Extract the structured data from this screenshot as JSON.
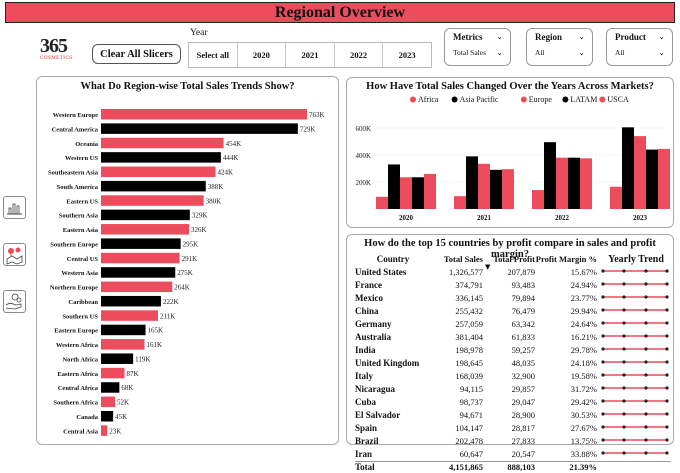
{
  "header": {
    "title": "Regional Overview"
  },
  "logo": {
    "number": "365",
    "subtitle": "COSMETICS"
  },
  "clear_button": "Clear All Slicers",
  "year_slicer": {
    "label": "Year",
    "options": [
      "Select all",
      "2020",
      "2021",
      "2022",
      "2023"
    ]
  },
  "dropdowns": [
    {
      "label": "Metrics",
      "value": "Total Sales"
    },
    {
      "label": "Region",
      "value": "All"
    },
    {
      "label": "Product",
      "value": "All"
    }
  ],
  "side_icons": [
    "bar-chart-icon",
    "map-pin-icon",
    "hand-coins-icon"
  ],
  "colors": {
    "accent": "#ed4c5c",
    "dark": "#000000",
    "title_bar": "#ed4c5c"
  },
  "chart_data": [
    {
      "type": "bar",
      "orientation": "horizontal",
      "title": "What Do Region-wise Total Sales Trends Show?",
      "categories": [
        "Western Europe",
        "Central America",
        "Oceania",
        "Western US",
        "Southeastern Asia",
        "South America",
        "Eastern US",
        "Southern Asia",
        "Eastern Asia",
        "Southern Europe",
        "Central US",
        "Western Asia",
        "Northern Europe",
        "Caribbean",
        "Southern US",
        "Eastern Europe",
        "Western Africa",
        "North Africa",
        "Eastern Africa",
        "Central Africa",
        "Southern Africa",
        "Canada",
        "Central Asia"
      ],
      "values": [
        763,
        729,
        454,
        444,
        424,
        388,
        380,
        329,
        326,
        295,
        291,
        275,
        264,
        222,
        211,
        165,
        161,
        119,
        87,
        68,
        52,
        45,
        23
      ],
      "value_labels": [
        "763K",
        "729K",
        "454K",
        "444K",
        "424K",
        "388K",
        "380K",
        "329K",
        "326K",
        "295K",
        "291K",
        "275K",
        "264K",
        "222K",
        "211K",
        "165K",
        "161K",
        "119K",
        "87K",
        "68K",
        "52K",
        "45K",
        "23K"
      ],
      "bar_colors": [
        "#ed4c5c",
        "#000000",
        "#ed4c5c",
        "#000000",
        "#ed4c5c",
        "#000000",
        "#ed4c5c",
        "#000000",
        "#ed4c5c",
        "#000000",
        "#ed4c5c",
        "#000000",
        "#ed4c5c",
        "#000000",
        "#ed4c5c",
        "#000000",
        "#ed4c5c",
        "#000000",
        "#ed4c5c",
        "#000000",
        "#ed4c5c",
        "#000000",
        "#ed4c5c"
      ],
      "unit": "K"
    },
    {
      "type": "bar",
      "title": "How Have Total Sales Changed Over the Years Across Markets?",
      "categories": [
        "2020",
        "2021",
        "2022",
        "2023"
      ],
      "legend_position": "top",
      "yticks": [
        "200K",
        "400K",
        "600K"
      ],
      "ylim": [
        0,
        700
      ],
      "series": [
        {
          "name": "Africa",
          "color": "#ed4c5c",
          "values": [
            90,
            95,
            140,
            165
          ]
        },
        {
          "name": "Asia Pacific",
          "color": "#000000",
          "values": [
            330,
            390,
            495,
            605
          ]
        },
        {
          "name": "Europe",
          "color": "#ed4c5c",
          "values": [
            235,
            335,
            380,
            540
          ]
        },
        {
          "name": "LATAM",
          "color": "#000000",
          "values": [
            235,
            290,
            380,
            440
          ]
        },
        {
          "name": "USCA",
          "color": "#ed4c5c",
          "values": [
            260,
            295,
            375,
            445
          ]
        }
      ]
    },
    {
      "type": "table",
      "title": "How do the top 15 countries by profit compare in sales and profit margin?",
      "columns": [
        "Country",
        "Total Sales",
        "Total Profit",
        "Profit Margin %",
        "Yearly Trend"
      ],
      "rows": [
        [
          "United States",
          "1,326,577",
          "207,879",
          "15.67%"
        ],
        [
          "France",
          "374,791",
          "93,483",
          "24.94%"
        ],
        [
          "Mexico",
          "336,145",
          "79,894",
          "23.77%"
        ],
        [
          "China",
          "255,432",
          "76,479",
          "29.94%"
        ],
        [
          "Germany",
          "257,059",
          "63,342",
          "24.64%"
        ],
        [
          "Australia",
          "381,404",
          "61,833",
          "16.21%"
        ],
        [
          "India",
          "198,978",
          "59,257",
          "29.78%"
        ],
        [
          "United Kingdom",
          "198,645",
          "48,035",
          "24.18%"
        ],
        [
          "Italy",
          "168,039",
          "32,900",
          "19.58%"
        ],
        [
          "Nicaragua",
          "94,115",
          "29,857",
          "31.72%"
        ],
        [
          "Cuba",
          "98,737",
          "29,047",
          "29.42%"
        ],
        [
          "El Salvador",
          "94,671",
          "28,900",
          "30.53%"
        ],
        [
          "Spain",
          "104,147",
          "28,817",
          "27.67%"
        ],
        [
          "Brazil",
          "202,478",
          "27,833",
          "13.75%"
        ],
        [
          "Iran",
          "60,647",
          "20,547",
          "33.88%"
        ]
      ],
      "total": [
        "Total",
        "4,151,865",
        "888,103",
        "21.39%"
      ],
      "sort_indicator": "Total Profit descending"
    }
  ]
}
